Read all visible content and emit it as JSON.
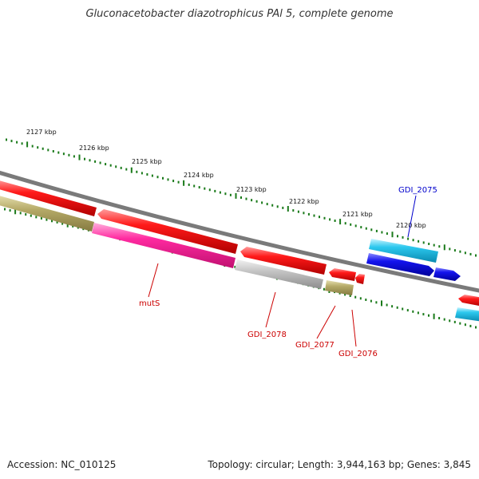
{
  "title": "Gluconacetobacter diazotrophicus PAl 5, complete genome",
  "footer": {
    "accession": "Accession: NC_010125",
    "stats": "Topology: circular; Length: 3,944,163 bp; Genes: 3,845"
  },
  "ruler_labels": [
    "2127 kbp",
    "2126 kbp",
    "2125 kbp",
    "2124 kbp",
    "2123 kbp",
    "2122 kbp",
    "2121 kbp",
    "2120 kbp"
  ],
  "gene_labels": [
    {
      "id": "mutS",
      "text": "mutS"
    },
    {
      "id": "GDI_2078",
      "text": "GDI_2078"
    },
    {
      "id": "GDI_2077",
      "text": "GDI_2077"
    },
    {
      "id": "GDI_2076",
      "text": "GDI_2076"
    },
    {
      "id": "GDI_2075",
      "text": "GDI_2075"
    }
  ],
  "colors": {
    "backbone": "#777777",
    "ruler": "#1a7a1a",
    "red_gene": "#ee1111",
    "pink_gene": "#ff2aa0",
    "olive_gene": "#b0a565",
    "gray_gene": "#bbbbbb",
    "blue_gene": "#1010ee",
    "cyan_gene": "#22c8ee",
    "label_red": "#cc0000",
    "label_blue": "#0000cc"
  }
}
